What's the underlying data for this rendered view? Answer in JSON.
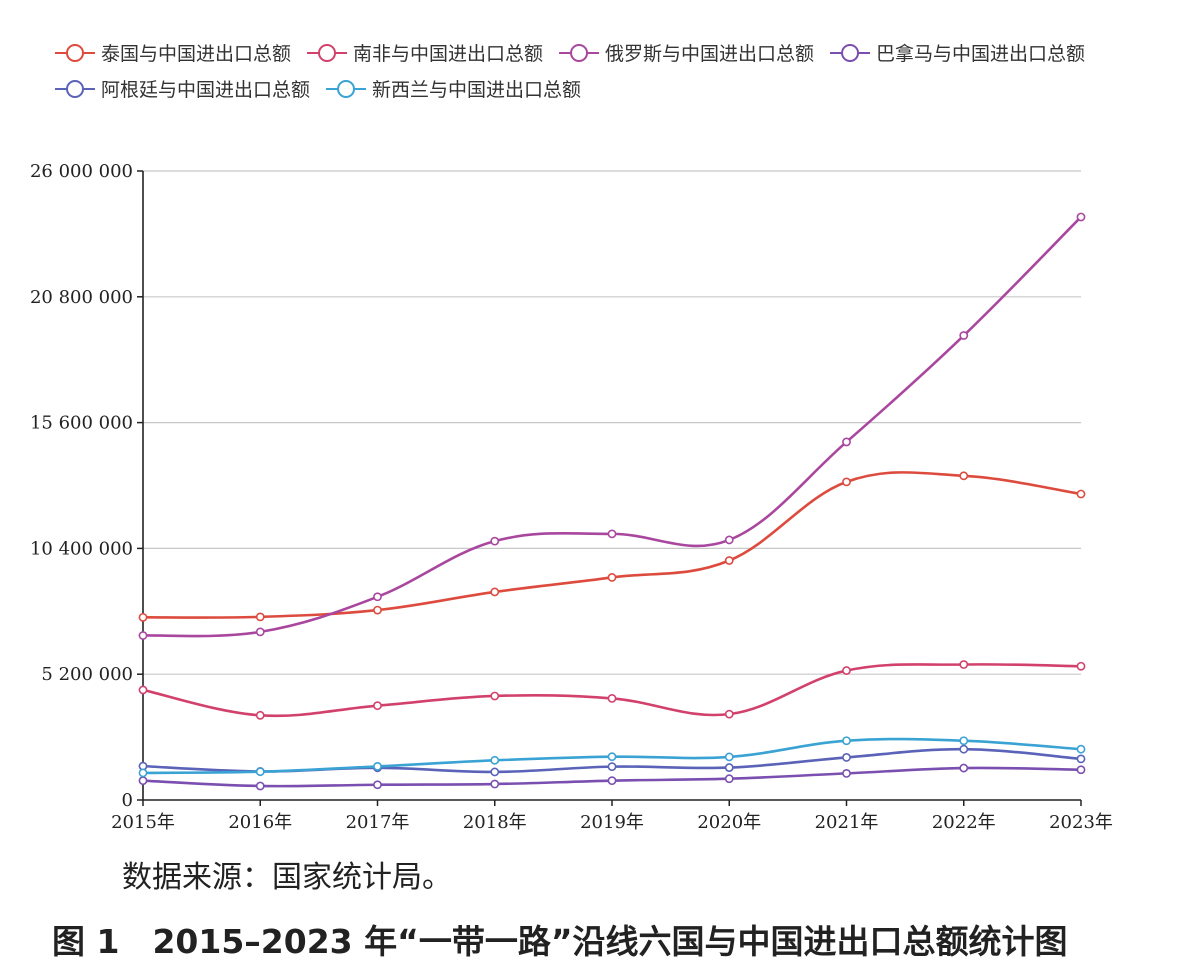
{
  "source_note": "数据来源：国家统计局。",
  "caption": "图 1　2015–2023 年“一带一路”沿线六国与中国进出口总额统计图",
  "chart_data": {
    "type": "line",
    "title": "",
    "xlabel": "",
    "ylabel": "",
    "categories": [
      "2015年",
      "2016年",
      "2017年",
      "2018年",
      "2019年",
      "2020年",
      "2021年",
      "2022年",
      "2023年"
    ],
    "ylim": [
      0,
      26000000
    ],
    "yticks": [
      0,
      5200000,
      10400000,
      15600000,
      20800000,
      26000000
    ],
    "ytick_labels": [
      "0",
      "5 200 000",
      "10 400 000",
      "15 600 000",
      "20 800 000",
      "26 000 000"
    ],
    "grid": "horizontal",
    "legend_position": "top-left",
    "series": [
      {
        "name": "泰国与中国进出口总额",
        "color": "#dd4b3e",
        "values": [
          7550000,
          7570000,
          7850000,
          8600000,
          9200000,
          9900000,
          13150000,
          13400000,
          12650000
        ]
      },
      {
        "name": "南非与中国进出口总额",
        "color": "#d2416c",
        "values": [
          4550000,
          3500000,
          3900000,
          4300000,
          4200000,
          3550000,
          5350000,
          5600000,
          5530000
        ]
      },
      {
        "name": "俄罗斯与中国进出口总额",
        "color": "#a9479f",
        "values": [
          6800000,
          6950000,
          8400000,
          10700000,
          11000000,
          10750000,
          14800000,
          19200000,
          24100000
        ]
      },
      {
        "name": "巴拿马与中国进出口总额",
        "color": "#7a4fb0",
        "values": [
          800000,
          580000,
          630000,
          660000,
          800000,
          880000,
          1100000,
          1320000,
          1250000
        ]
      },
      {
        "name": "阿根廷与中国进出口总额",
        "color": "#5a63b8",
        "values": [
          1400000,
          1180000,
          1330000,
          1160000,
          1380000,
          1340000,
          1760000,
          2100000,
          1700000
        ]
      },
      {
        "name": "新西兰与中国进出口总额",
        "color": "#3aa3d4",
        "values": [
          1120000,
          1170000,
          1390000,
          1640000,
          1790000,
          1780000,
          2450000,
          2450000,
          2100000
        ]
      }
    ]
  }
}
